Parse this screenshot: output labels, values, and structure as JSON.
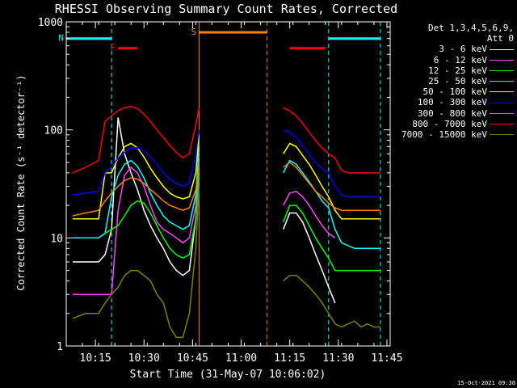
{
  "chart_data": {
    "type": "line",
    "title": "RHESSI Observing Summary Count Rates, Corrected",
    "xlabel": "Start Time (31-May-07 10:06:02)",
    "ylabel": "Corrected Count Rate (s⁻¹ detector⁻¹)",
    "yscale": "log",
    "ylim": [
      1,
      1000
    ],
    "y_ticks": [
      1,
      10,
      100,
      1000
    ],
    "y_tick_labels": [
      "1",
      "10",
      "100",
      "1000"
    ],
    "xlim": [
      "10:06",
      "11:46"
    ],
    "x_ticks": [
      "10:15",
      "10:30",
      "10:45",
      "11:00",
      "11:15",
      "11:30",
      "11:45"
    ],
    "x_tick_labels": [
      "10:15",
      "10:30",
      "10:45",
      "11:00",
      "11:15",
      "11:30",
      "11:45"
    ],
    "grid": false,
    "legend_position": "right",
    "legend_title": [
      "Det 1,3,4,5,6,9,",
      "Att 0"
    ],
    "data_gap": [
      "10:47",
      "11:13"
    ],
    "series": [
      {
        "name": "3 - 6 keV",
        "color": "#ffffff",
        "x": [
          "10:08",
          "10:12",
          "10:16",
          "10:18",
          "10:20",
          "10:22",
          "10:24",
          "10:26",
          "10:28",
          "10:30",
          "10:32",
          "10:34",
          "10:36",
          "10:38",
          "10:40",
          "10:42",
          "10:44",
          "10:46",
          "10:47",
          "11:13",
          "11:15",
          "11:17",
          "11:19",
          "11:21",
          "11:23",
          "11:25",
          "11:27",
          "11:29"
        ],
        "y": [
          6,
          6,
          6,
          7,
          12,
          130,
          60,
          40,
          28,
          18,
          13,
          10,
          8,
          6,
          5,
          4.5,
          5,
          15,
          60,
          12,
          17,
          17,
          14,
          10,
          7,
          5,
          3.5,
          2.5
        ]
      },
      {
        "name": "6 - 12 keV",
        "color": "#ff40ff",
        "x": [
          "10:08",
          "10:12",
          "10:16",
          "10:18",
          "10:20",
          "10:22",
          "10:24",
          "10:26",
          "10:28",
          "10:30",
          "10:32",
          "10:34",
          "10:36",
          "10:38",
          "10:40",
          "10:42",
          "10:44",
          "10:46",
          "10:47",
          "11:13",
          "11:15",
          "11:17",
          "11:19",
          "11:21",
          "11:23",
          "11:25",
          "11:27",
          "11:29"
        ],
        "y": [
          3,
          3,
          3,
          3,
          3,
          18,
          38,
          45,
          40,
          30,
          20,
          14,
          12,
          11,
          10,
          9,
          10,
          20,
          60,
          20,
          26,
          27,
          24,
          20,
          16,
          13,
          11,
          10
        ]
      },
      {
        "name": "12 - 25 keV",
        "color": "#00ff00",
        "x": [
          "10:08",
          "10:12",
          "10:16",
          "10:18",
          "10:20",
          "10:22",
          "10:24",
          "10:26",
          "10:28",
          "10:30",
          "10:32",
          "10:34",
          "10:36",
          "10:38",
          "10:40",
          "10:42",
          "10:44",
          "10:46",
          "10:47",
          "11:13",
          "11:15",
          "11:17",
          "11:19",
          "11:21",
          "11:23",
          "11:25",
          "11:27",
          "11:29",
          "11:31",
          "11:33",
          "11:35",
          "11:37",
          "11:39",
          "11:41",
          "11:43"
        ],
        "y": [
          10,
          10,
          10,
          11,
          12,
          13,
          16,
          20,
          22,
          21,
          17,
          13,
          10,
          8,
          7,
          6.5,
          7,
          15,
          40,
          14,
          20,
          20,
          17,
          13,
          10,
          8,
          6.5,
          5,
          5,
          5,
          5,
          5,
          5,
          5,
          5
        ]
      },
      {
        "name": "25 - 50 keV",
        "color": "#00ffff",
        "x": [
          "10:08",
          "10:12",
          "10:16",
          "10:18",
          "10:20",
          "10:22",
          "10:24",
          "10:26",
          "10:28",
          "10:30",
          "10:32",
          "10:34",
          "10:36",
          "10:38",
          "10:40",
          "10:42",
          "10:44",
          "10:46",
          "10:47",
          "11:13",
          "11:15",
          "11:17",
          "11:19",
          "11:21",
          "11:23",
          "11:25",
          "11:27",
          "11:29",
          "11:31",
          "11:33",
          "11:35",
          "11:37",
          "11:39",
          "11:41",
          "11:43"
        ],
        "y": [
          10,
          10,
          10,
          11,
          24,
          38,
          48,
          52,
          46,
          36,
          26,
          20,
          16,
          14,
          13,
          12,
          13,
          25,
          70,
          40,
          52,
          48,
          40,
          33,
          27,
          22,
          19,
          12,
          9,
          8.5,
          8,
          8,
          8,
          8,
          8
        ]
      },
      {
        "name": "50 - 100 keV",
        "color": "#ffff00",
        "x": [
          "10:08",
          "10:12",
          "10:16",
          "10:18",
          "10:20",
          "10:22",
          "10:24",
          "10:26",
          "10:28",
          "10:30",
          "10:32",
          "10:34",
          "10:36",
          "10:38",
          "10:40",
          "10:42",
          "10:44",
          "10:46",
          "10:47",
          "11:13",
          "11:15",
          "11:17",
          "11:19",
          "11:21",
          "11:23",
          "11:25",
          "11:27",
          "11:29",
          "11:31",
          "11:33",
          "11:35",
          "11:37",
          "11:39",
          "11:41",
          "11:43"
        ],
        "y": [
          15,
          15,
          15,
          40,
          40,
          55,
          70,
          75,
          68,
          56,
          44,
          36,
          30,
          26,
          24,
          23,
          24,
          40,
          90,
          60,
          75,
          70,
          58,
          48,
          38,
          30,
          24,
          18,
          15,
          15,
          15,
          15,
          15,
          15,
          15
        ]
      },
      {
        "name": "100 - 300 keV",
        "color": "#0000ff",
        "x": [
          "10:08",
          "10:12",
          "10:16",
          "10:18",
          "10:20",
          "10:22",
          "10:24",
          "10:26",
          "10:28",
          "10:30",
          "10:32",
          "10:34",
          "10:36",
          "10:38",
          "10:40",
          "10:42",
          "10:44",
          "10:46",
          "10:47",
          "11:13",
          "11:15",
          "11:17",
          "11:19",
          "11:21",
          "11:23",
          "11:25",
          "11:27",
          "11:29",
          "11:31",
          "11:33",
          "11:35",
          "11:37",
          "11:39",
          "11:41",
          "11:43"
        ],
        "y": [
          25,
          26,
          27,
          40,
          45,
          55,
          62,
          68,
          68,
          64,
          56,
          48,
          40,
          35,
          32,
          30,
          32,
          60,
          100,
          100,
          95,
          85,
          72,
          60,
          50,
          44,
          40,
          30,
          25,
          24,
          24,
          24,
          24,
          24,
          24
        ]
      },
      {
        "name": "300 - 800 keV",
        "color": "#ff8000",
        "x": [
          "10:08",
          "10:12",
          "10:16",
          "10:18",
          "10:20",
          "10:22",
          "10:24",
          "10:26",
          "10:28",
          "10:30",
          "10:32",
          "10:34",
          "10:36",
          "10:38",
          "10:40",
          "10:42",
          "10:44",
          "10:46",
          "10:47",
          "11:13",
          "11:15",
          "11:17",
          "11:19",
          "11:21",
          "11:23",
          "11:25",
          "11:27",
          "11:29",
          "11:31",
          "11:33",
          "11:35",
          "11:37",
          "11:39",
          "11:41",
          "11:43"
        ],
        "y": [
          16,
          17,
          18,
          22,
          26,
          30,
          34,
          36,
          35,
          32,
          28,
          25,
          22,
          20,
          19,
          18,
          19,
          28,
          45,
          45,
          50,
          45,
          38,
          32,
          27,
          24,
          21,
          19,
          18,
          18,
          18,
          18,
          18,
          18,
          18
        ]
      },
      {
        "name": "800 - 7000 keV",
        "color": "#ff0000",
        "x": [
          "10:08",
          "10:12",
          "10:16",
          "10:18",
          "10:20",
          "10:22",
          "10:24",
          "10:26",
          "10:28",
          "10:30",
          "10:32",
          "10:34",
          "10:36",
          "10:38",
          "10:40",
          "10:42",
          "10:44",
          "10:46",
          "10:47",
          "11:13",
          "11:15",
          "11:17",
          "11:19",
          "11:21",
          "11:23",
          "11:25",
          "11:27",
          "11:29",
          "11:31",
          "11:33",
          "11:35",
          "11:37",
          "11:39",
          "11:41",
          "11:43"
        ],
        "y": [
          40,
          45,
          52,
          120,
          135,
          150,
          160,
          165,
          158,
          140,
          120,
          100,
          85,
          72,
          62,
          55,
          60,
          110,
          160,
          160,
          150,
          135,
          115,
          95,
          80,
          68,
          60,
          55,
          42,
          40,
          40,
          40,
          40,
          40,
          40
        ]
      },
      {
        "name": "7000 - 15000 keV",
        "color": "#808000",
        "x": [
          "10:08",
          "10:12",
          "10:16",
          "10:18",
          "10:20",
          "10:22",
          "10:24",
          "10:26",
          "10:28",
          "10:30",
          "10:32",
          "10:34",
          "10:36",
          "10:38",
          "10:40",
          "10:42",
          "10:44",
          "10:46",
          "10:47",
          "11:13",
          "11:15",
          "11:17",
          "11:19",
          "11:21",
          "11:23",
          "11:25",
          "11:27",
          "11:29",
          "11:31",
          "11:33",
          "11:35",
          "11:37",
          "11:39",
          "11:41",
          "11:43"
        ],
        "y": [
          1.8,
          2.0,
          2.0,
          2.5,
          3.0,
          3.5,
          4.5,
          5,
          5,
          4.5,
          4,
          3,
          2.5,
          1.5,
          1.2,
          1.2,
          2,
          8,
          30,
          4,
          4.5,
          4.5,
          4,
          3.5,
          3,
          2.5,
          2,
          1.6,
          1.5,
          1.6,
          1.7,
          1.5,
          1.6,
          1.5,
          1.5
        ]
      }
    ],
    "annotations": [
      {
        "label": "F",
        "color": "#ff0000",
        "kind": "flare-bar",
        "x_start": "10:22",
        "x_end": "10:28",
        "y": 570
      },
      {
        "label": "",
        "color": "#ff0000",
        "kind": "flare-bar",
        "x_start": "11:15",
        "x_end": "11:26",
        "y": 570
      },
      {
        "label": "N",
        "color": "#00ffff",
        "kind": "night-bar",
        "x_start": "10:06",
        "x_end": "10:20",
        "y": 700
      },
      {
        "label": "",
        "color": "#00ffff",
        "kind": "night-bar",
        "x_start": "11:27",
        "x_end": "11:43",
        "y": 700
      },
      {
        "label": "S",
        "color": "#ff8000",
        "kind": "saa-bar",
        "x_start": "10:47",
        "x_end": "11:08",
        "y": 800
      }
    ],
    "vlines": [
      {
        "x": "10:20",
        "color": "#00ffff",
        "dashed": true
      },
      {
        "x": "11:27",
        "color": "#00ffff",
        "dashed": true
      },
      {
        "x": "11:43",
        "color": "#00ffff",
        "dashed": true
      },
      {
        "x": "10:47",
        "color": "#ff8000",
        "dashed": false
      },
      {
        "x": "11:08",
        "color": "#ff8000",
        "dashed": true
      }
    ]
  },
  "footer": {
    "timestamp": "15-Oct-2021 09:38"
  }
}
